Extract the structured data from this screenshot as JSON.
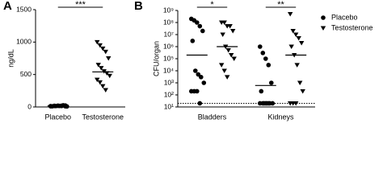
{
  "chart_data": [
    {
      "type": "dot",
      "panel": "A",
      "y_label": "ng/dL",
      "categories": [
        "Placebo",
        "Testosterone"
      ],
      "values": [
        [
          12,
          15,
          18,
          20,
          22,
          10,
          14,
          16,
          25,
          8,
          12,
          18,
          20,
          15,
          10
        ],
        [
          1000,
          950,
          900,
          850,
          750,
          650,
          600,
          550,
          520,
          480,
          420,
          380,
          320,
          260
        ]
      ],
      "means": [
        16,
        540
      ],
      "ylim": [
        0,
        1500
      ],
      "yticks": [
        0,
        500,
        1000,
        1500
      ],
      "color": "#000000",
      "significance": "***"
    },
    {
      "type": "dot",
      "panel": "B",
      "y_label": "CFU/organ",
      "log_y": true,
      "categories": [
        "Bladders",
        "Kidneys"
      ],
      "series": [
        {
          "name": "Placebo",
          "marker": "circle",
          "color": "#000000",
          "values": [
            [
              200000000,
              150000000,
              100000000,
              50000000,
              20000000,
              3000000,
              10000,
              5000,
              3000,
              1000,
              200,
              200,
              200,
              20
            ],
            [
              1000000,
              300000,
              100000,
              30000,
              1000,
              200,
              20,
              20,
              20,
              20,
              20,
              20,
              20,
              20
            ]
          ],
          "means": [
            200000,
            600
          ]
        },
        {
          "name": "Testosterone",
          "marker": "triangle",
          "color": "#000000",
          "values": [
            [
              100000000,
              100000000,
              50000000,
              50000000,
              20000000,
              10000000,
              1000000,
              500000,
              200000,
              100000,
              30000,
              10000,
              3000
            ],
            [
              500000000,
              20000000,
              10000000,
              5000000,
              2000000,
              1000000,
              200000,
              30000,
              1000,
              200,
              20,
              20,
              20
            ]
          ],
          "means": [
            1000000,
            200000
          ]
        }
      ],
      "ylim": [
        10,
        1000000000
      ],
      "yticks": [
        {
          "value": 10,
          "label": "10¹"
        },
        {
          "value": 100,
          "label": "10²"
        },
        {
          "value": 1000,
          "label": "10³"
        },
        {
          "value": 10000,
          "label": "10⁴"
        },
        {
          "value": 100000,
          "label": "10⁵"
        },
        {
          "value": 1000000,
          "label": "10⁶"
        },
        {
          "value": 10000000,
          "label": "10⁷"
        },
        {
          "value": 100000000,
          "label": "10⁸"
        },
        {
          "value": 1000000000,
          "label": "10⁹"
        }
      ],
      "detection_limit": 20,
      "significance": [
        "*",
        "**"
      ],
      "legend": "top-right"
    }
  ]
}
